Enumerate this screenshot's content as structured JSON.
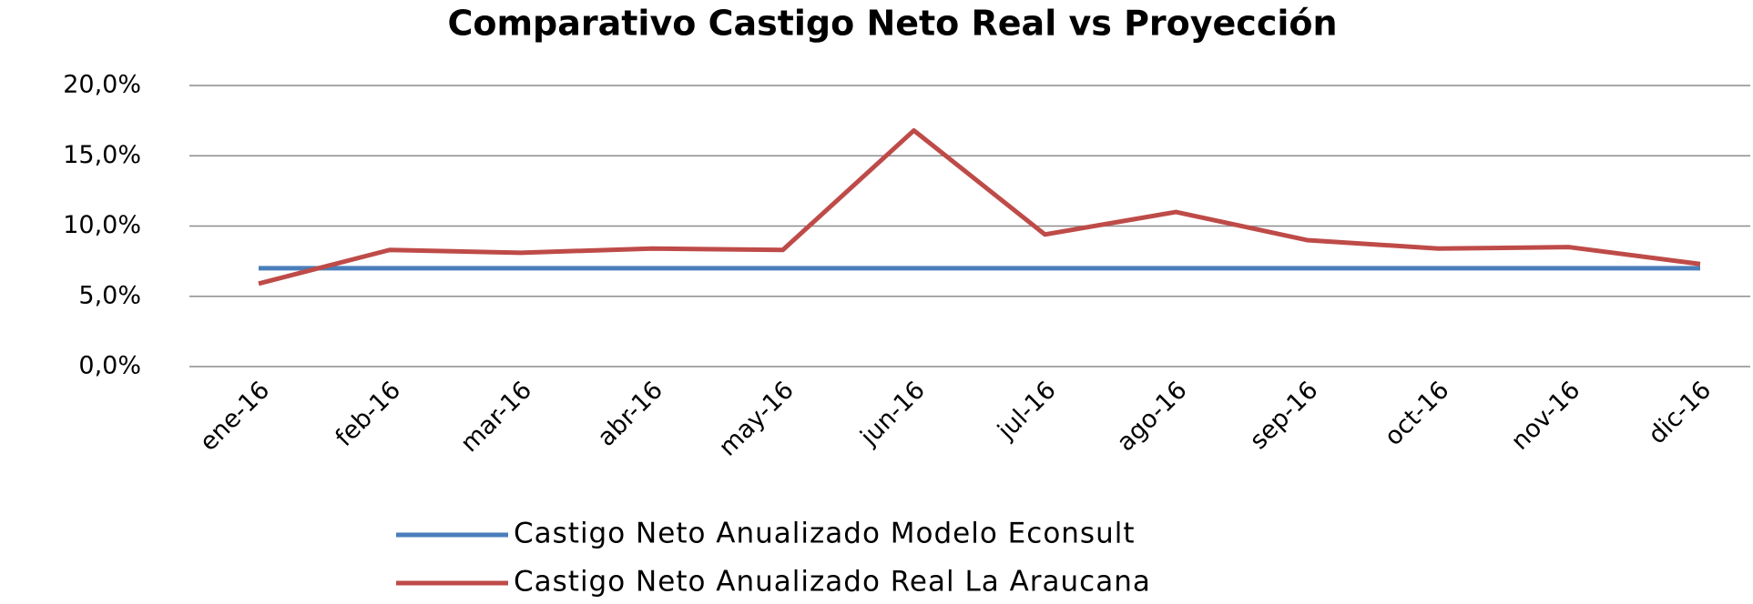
{
  "chart_data": {
    "type": "line",
    "title": "Comparativo Castigo Neto Real vs Proyección",
    "categories": [
      "ene-16",
      "feb-16",
      "mar-16",
      "abr-16",
      "may-16",
      "jun-16",
      "jul-16",
      "ago-16",
      "sep-16",
      "oct-16",
      "nov-16",
      "dic-16"
    ],
    "series": [
      {
        "name": "Castigo Neto Anualizado Modelo Econsult",
        "color": "#4a7ebb",
        "values": [
          7.0,
          7.0,
          7.0,
          7.0,
          7.0,
          7.0,
          7.0,
          7.0,
          7.0,
          7.0,
          7.0,
          7.0
        ]
      },
      {
        "name": "Castigo Neto Anualizado Real La Araucana",
        "color": "#be4b48",
        "values": [
          5.9,
          8.3,
          8.1,
          8.4,
          8.3,
          16.8,
          9.4,
          11.0,
          9.0,
          8.4,
          8.5,
          7.3
        ]
      }
    ],
    "ylim": [
      0,
      20
    ],
    "yticks": [
      {
        "value": 0,
        "label": "0,0%"
      },
      {
        "value": 5,
        "label": "5,0%"
      },
      {
        "value": 10,
        "label": "10,0%"
      },
      {
        "value": 15,
        "label": "15,0%"
      },
      {
        "value": 20,
        "label": "20,0%"
      }
    ],
    "grid": true,
    "legend": "bottom"
  }
}
